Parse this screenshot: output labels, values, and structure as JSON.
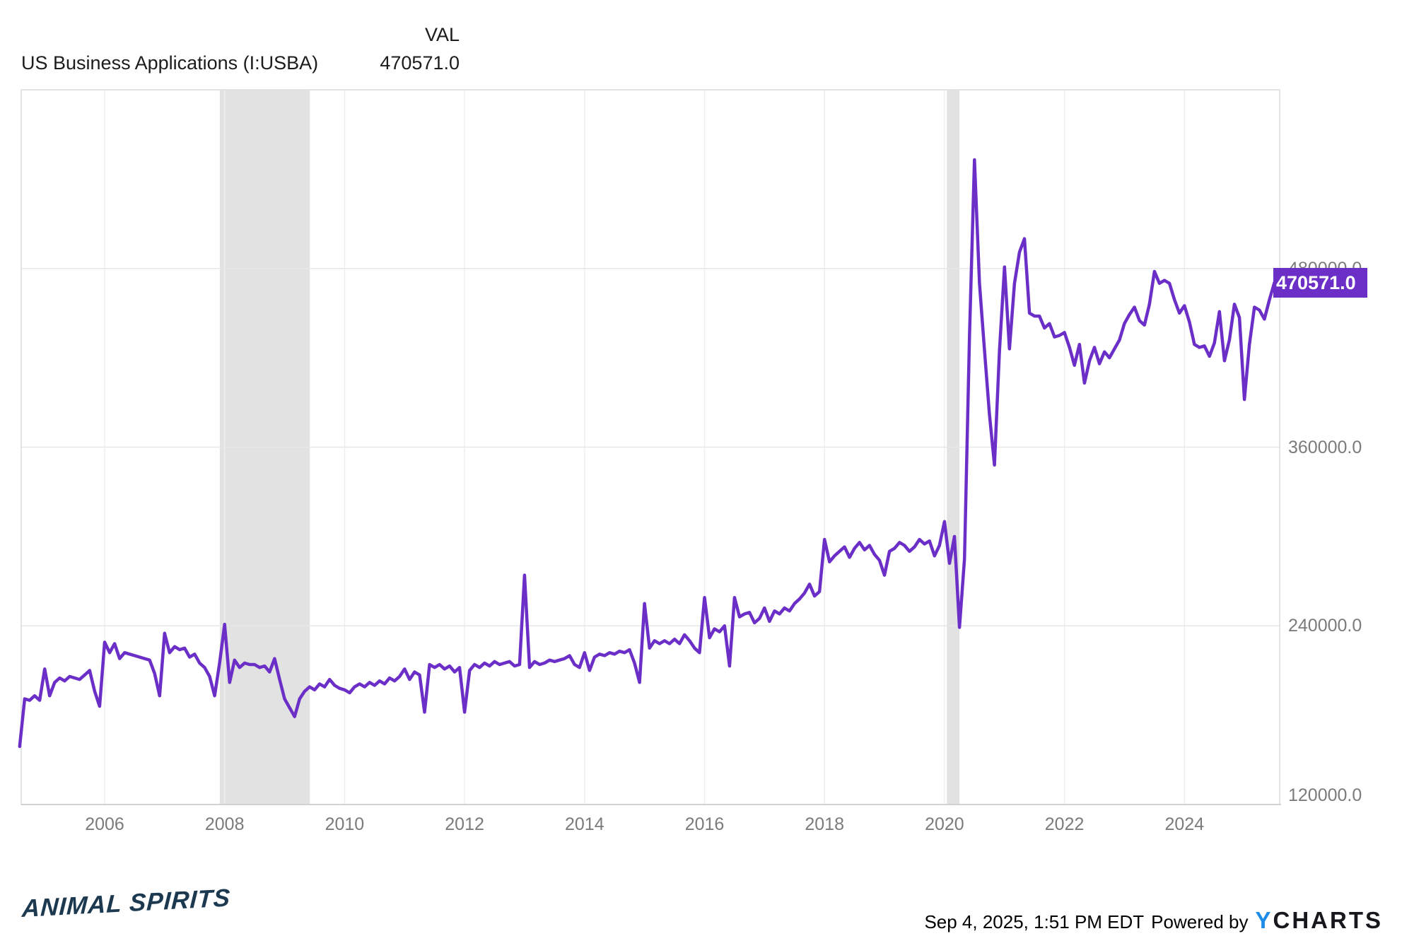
{
  "header": {
    "value_column_label": "VAL",
    "series_title": "US Business Applications (I:USBA)",
    "current_value": "470571.0"
  },
  "badge": {
    "value": "470571.0"
  },
  "chart_data": {
    "type": "line",
    "title": "US Business Applications (I:USBA)",
    "series_name": "VAL",
    "frequency": "monthly",
    "start": "2004-08",
    "end": "2025-07",
    "current_value": 470571.0,
    "grid": "on",
    "legend": "none",
    "y_axis": {
      "min": 120000,
      "max": 600000,
      "tick_interval": 120000,
      "tick_values": [
        480000,
        360000,
        240000,
        120000
      ],
      "tick_labels": [
        "480000.0",
        "360000.0",
        "240000.0",
        "120000.0"
      ]
    },
    "x_axis": {
      "tick_years": [
        2006,
        2008,
        2010,
        2012,
        2014,
        2016,
        2018,
        2020,
        2022,
        2024
      ],
      "tick_labels": [
        "2006",
        "2008",
        "2010",
        "2012",
        "2014",
        "2016",
        "2018",
        "2020",
        "2022",
        "2024"
      ]
    },
    "recession_bands": [
      {
        "start": 2007.92,
        "end": 2009.42
      },
      {
        "start": 2020.04,
        "end": 2020.25
      }
    ],
    "values": [
      159000,
      191000,
      190000,
      193000,
      190000,
      211000,
      193000,
      202000,
      205000,
      203000,
      206000,
      205000,
      204000,
      207000,
      210000,
      196000,
      186000,
      229000,
      222000,
      228000,
      218000,
      222000,
      221000,
      220000,
      219000,
      218000,
      217000,
      208000,
      193000,
      235000,
      222000,
      226000,
      224000,
      225000,
      219000,
      221000,
      215000,
      212000,
      206000,
      193000,
      215000,
      241000,
      202000,
      217000,
      212000,
      215000,
      214000,
      214000,
      212000,
      213000,
      209000,
      218000,
      204000,
      191000,
      185000,
      179000,
      191000,
      196000,
      199000,
      197000,
      201000,
      199000,
      204000,
      200000,
      198000,
      197000,
      195000,
      199000,
      201000,
      199000,
      202000,
      200000,
      203000,
      201000,
      205000,
      203000,
      206000,
      211000,
      204000,
      209000,
      207000,
      182000,
      214000,
      212000,
      214000,
      211000,
      213000,
      209000,
      212000,
      182000,
      210000,
      214000,
      212000,
      215000,
      213000,
      216000,
      214000,
      215000,
      216000,
      213000,
      214000,
      274000,
      212000,
      216000,
      214000,
      215000,
      217000,
      216000,
      217000,
      218000,
      220000,
      214000,
      212000,
      222000,
      210000,
      219000,
      221000,
      220000,
      222000,
      221000,
      223000,
      222000,
      224000,
      215000,
      202000,
      255000,
      225000,
      230000,
      228000,
      230000,
      228000,
      231000,
      228000,
      234000,
      230000,
      225000,
      222000,
      259000,
      232000,
      238000,
      236000,
      240000,
      213000,
      259000,
      246000,
      248000,
      249000,
      242000,
      245000,
      252000,
      243000,
      250000,
      248000,
      252000,
      250000,
      255000,
      258000,
      262000,
      268000,
      260000,
      263000,
      298000,
      283000,
      287000,
      290000,
      293000,
      286000,
      292000,
      296000,
      291000,
      294000,
      288000,
      284000,
      274000,
      290000,
      292000,
      296000,
      294000,
      290000,
      293000,
      298000,
      295000,
      297000,
      287000,
      294000,
      310000,
      282000,
      300000,
      239000,
      285000,
      435000,
      553000,
      470000,
      425000,
      382000,
      348000,
      425000,
      481000,
      426000,
      470000,
      491000,
      500000,
      450000,
      448000,
      448000,
      440000,
      443000,
      434000,
      435000,
      437000,
      427000,
      415000,
      429000,
      403000,
      418000,
      427000,
      416000,
      424000,
      420000,
      426000,
      432000,
      443000,
      449000,
      454000,
      445000,
      442000,
      456000,
      478000,
      470000,
      472000,
      470000,
      459000,
      450000,
      455000,
      444000,
      429000,
      427000,
      428000,
      421000,
      430000,
      451000,
      418000,
      432000,
      456000,
      447000,
      392000,
      429000,
      454000,
      452000,
      446000,
      459000,
      470571
    ]
  },
  "footer": {
    "brand": "ANIMAL SPIRITS",
    "timestamp": "Sep 4, 2025, 1:51 PM EDT",
    "powered_by": "Powered by",
    "provider_y": "Y",
    "provider_rest": "CHARTS"
  },
  "colors": {
    "line": "#6b2fc8",
    "badge": "#6b2fc8",
    "recession_band": "#e2e2e2",
    "grid_h": "#e7e7e7",
    "grid_v": "#efefef",
    "plot_border": "#dcdcdc",
    "axis_line": "#d2d2d2",
    "axis_text": "#7b7b7b",
    "title_text": "#1c1c1c",
    "brand_navy": "#1c3950",
    "ycharts_blue": "#1d8ce8",
    "ycharts_dark": "#16181d"
  }
}
